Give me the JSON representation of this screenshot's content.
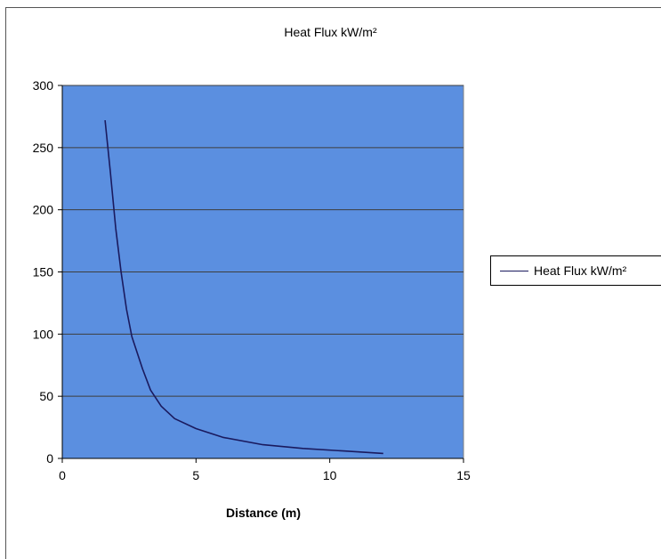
{
  "chart_data": {
    "type": "line",
    "title": "Heat Flux kW/m²",
    "xlabel": "Distance (m)",
    "ylabel": "",
    "xlim": [
      0,
      15
    ],
    "ylim": [
      0,
      300
    ],
    "xticks": [
      "0",
      "5",
      "10",
      "15"
    ],
    "yticks": [
      "0",
      "50",
      "100",
      "150",
      "200",
      "250",
      "300"
    ],
    "grid": "horizontal",
    "legend": "right",
    "plot_background": "#5B8FE0",
    "line_color": "#1a1a5e",
    "series": [
      {
        "name": "Heat Flux kW/m²",
        "x": [
          1.6,
          1.8,
          2.0,
          2.2,
          2.4,
          2.6,
          2.8,
          3.0,
          3.3,
          3.7,
          4.2,
          5.0,
          6.0,
          7.5,
          9.0,
          10.5,
          12.0
        ],
        "y": [
          272,
          230,
          185,
          150,
          120,
          98,
          85,
          72,
          55,
          42,
          32,
          24,
          17,
          11,
          8,
          6,
          4
        ]
      }
    ]
  }
}
